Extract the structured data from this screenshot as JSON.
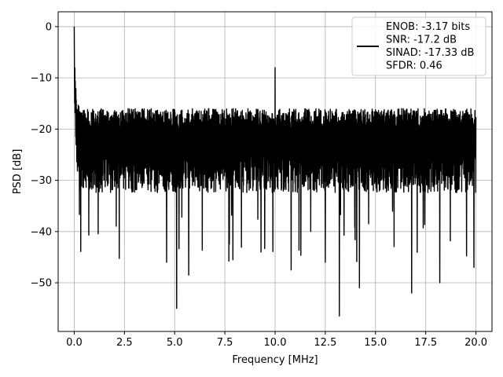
{
  "chart_data": {
    "type": "line",
    "xlabel": "Frequency [MHz]",
    "ylabel": "PSD [dB]",
    "xlim": [
      -0.8,
      20.8
    ],
    "ylim": [
      -59.5,
      2.9
    ],
    "x_ticks": [
      0.0,
      2.5,
      5.0,
      7.5,
      10.0,
      12.5,
      15.0,
      17.5,
      20.0
    ],
    "x_tick_labels": [
      "0.0",
      "2.5",
      "5.0",
      "7.5",
      "10.0",
      "12.5",
      "15.0",
      "17.5",
      "20.0"
    ],
    "y_ticks": [
      0,
      -10,
      -20,
      -30,
      -40,
      -50
    ],
    "y_tick_labels": [
      "0",
      "−10",
      "−20",
      "−30",
      "−40",
      "−50"
    ],
    "grid": true,
    "legend_position": "top-right",
    "legend_entries": [
      "ENOB: -3.17 bits",
      "SNR: -17.2 dB",
      "SINAD: -17.33 dB",
      "SFDR: 0.46"
    ],
    "line_color": "#000000",
    "series": [
      {
        "x_start": 0.0,
        "x_end": 20.0,
        "noise_band_upper": -16,
        "noise_band_lower": -30,
        "startup_peak": 0,
        "spurs": [
          {
            "x": 10.0,
            "y": -8
          },
          {
            "x": 5.1,
            "y": -55
          },
          {
            "x": 5.7,
            "y": -48.5
          },
          {
            "x": 13.2,
            "y": -56.5
          },
          {
            "x": 16.8,
            "y": -52
          },
          {
            "x": 4.6,
            "y": -46
          },
          {
            "x": 7.9,
            "y": -45.5
          },
          {
            "x": 10.8,
            "y": -47.5
          },
          {
            "x": 14.2,
            "y": -51
          },
          {
            "x": 18.2,
            "y": -50
          },
          {
            "x": 19.9,
            "y": -47
          },
          {
            "x": 12.5,
            "y": -46
          },
          {
            "x": 9.3,
            "y": -44
          }
        ]
      }
    ]
  }
}
